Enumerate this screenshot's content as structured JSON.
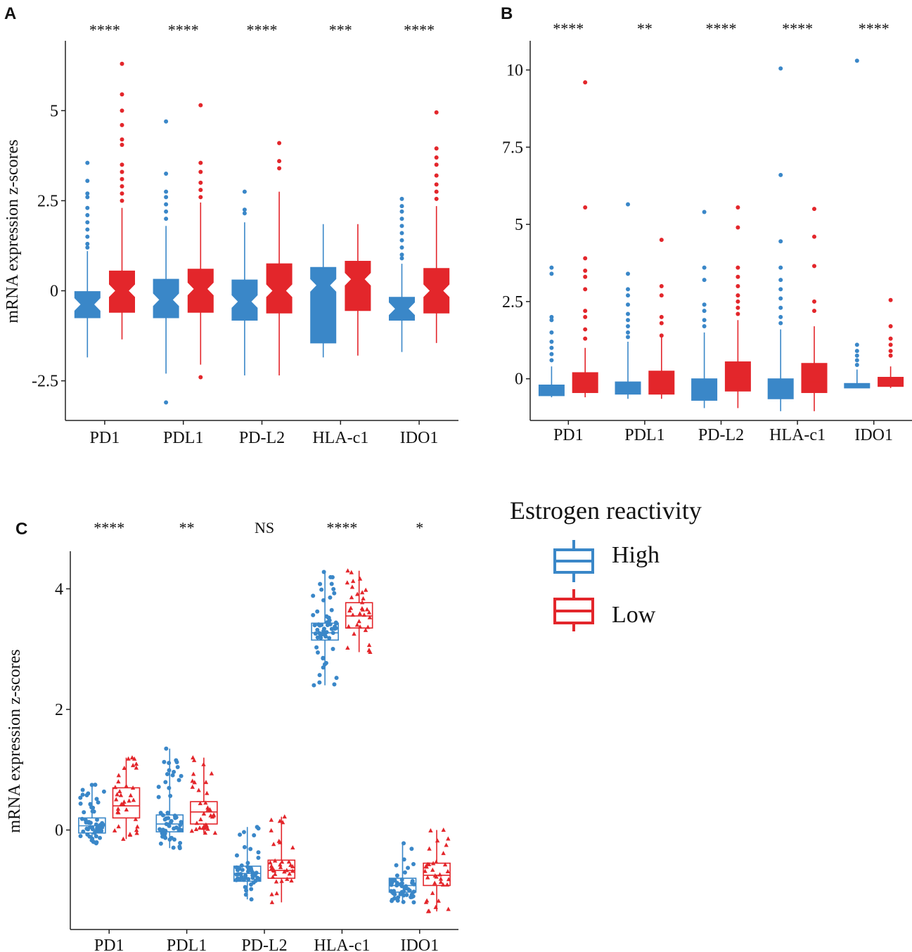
{
  "chart_data": [
    {
      "panel": "A",
      "type": "boxplot",
      "ylabel": "mRNA expression z-scores",
      "ylim": [
        -3.6,
        6.9
      ],
      "yticks": [
        -2.5,
        0,
        2.5,
        5
      ],
      "ytick_labels": [
        "-2.5",
        "0",
        "2.5",
        "5"
      ],
      "notched": true,
      "categories": [
        "PD1",
        "PDL1",
        "PD-L2",
        "HLA-c1",
        "IDO1"
      ],
      "significance": [
        "****",
        "****",
        "****",
        "***",
        "****"
      ],
      "series": [
        {
          "name": "High",
          "boxes": [
            {
              "q1": -0.75,
              "med": -0.38,
              "q3": -0.02,
              "lo": -1.85,
              "hi": 1.1,
              "out": [
                3.55,
                3.05,
                2.7,
                2.6,
                2.3,
                2.1,
                1.9,
                1.7,
                1.5,
                1.3,
                1.2
              ]
            },
            {
              "q1": -0.75,
              "med": -0.25,
              "q3": 0.32,
              "lo": -2.3,
              "hi": 1.8,
              "out": [
                4.7,
                3.25,
                2.75,
                2.6,
                2.4,
                2.2,
                2.0,
                -3.1
              ]
            },
            {
              "q1": -0.82,
              "med": -0.3,
              "q3": 0.3,
              "lo": -2.35,
              "hi": 1.9,
              "out": [
                2.75,
                2.25,
                2.15
              ]
            },
            {
              "q1": -1.45,
              "med": 0.15,
              "q3": 0.65,
              "lo": -1.85,
              "hi": 1.85,
              "out": []
            },
            {
              "q1": -0.82,
              "med": -0.5,
              "q3": -0.18,
              "lo": -1.7,
              "hi": 0.75,
              "out": [
                2.55,
                2.35,
                2.2,
                2.0,
                1.8,
                1.6,
                1.4,
                1.2,
                1.0,
                0.9
              ]
            }
          ]
        },
        {
          "name": "Low",
          "boxes": [
            {
              "q1": -0.6,
              "med": 0.0,
              "q3": 0.55,
              "lo": -1.35,
              "hi": 2.3,
              "out": [
                6.3,
                5.45,
                5.0,
                4.6,
                4.2,
                4.05,
                3.5,
                3.3,
                3.1,
                2.9,
                2.7,
                2.5
              ]
            },
            {
              "q1": -0.6,
              "med": 0.05,
              "q3": 0.6,
              "lo": -2.05,
              "hi": 2.45,
              "out": [
                5.15,
                3.55,
                3.3,
                3.0,
                2.8,
                2.6,
                -2.4
              ]
            },
            {
              "q1": -0.62,
              "med": 0.0,
              "q3": 0.75,
              "lo": -2.35,
              "hi": 2.75,
              "out": [
                4.1,
                3.6,
                3.4
              ]
            },
            {
              "q1": -0.55,
              "med": 0.32,
              "q3": 0.82,
              "lo": -1.8,
              "hi": 1.85,
              "out": []
            },
            {
              "q1": -0.62,
              "med": 0.0,
              "q3": 0.62,
              "lo": -1.45,
              "hi": 2.35,
              "out": [
                4.95,
                3.95,
                3.7,
                3.5,
                3.2,
                2.95,
                2.75,
                2.55
              ]
            }
          ]
        }
      ]
    },
    {
      "panel": "B",
      "type": "boxplot",
      "ylabel": "",
      "ylim": [
        -1.35,
        10.9
      ],
      "yticks": [
        0,
        2.5,
        5,
        7.5,
        10
      ],
      "ytick_labels": [
        "0",
        "2.5",
        "5",
        "7.5",
        "10"
      ],
      "notched": false,
      "categories": [
        "PD1",
        "PDL1",
        "PD-L2",
        "HLA-c1",
        "IDO1"
      ],
      "significance": [
        "****",
        "**",
        "****",
        "****",
        "****"
      ],
      "series": [
        {
          "name": "High",
          "boxes": [
            {
              "q1": -0.55,
              "med": -0.45,
              "q3": -0.2,
              "lo": -0.6,
              "hi": 0.4,
              "out": [
                3.6,
                3.4,
                2.0,
                1.9,
                1.5,
                1.2,
                1.0,
                0.8,
                0.6
              ]
            },
            {
              "q1": -0.5,
              "med": -0.4,
              "q3": -0.1,
              "lo": -0.65,
              "hi": 1.2,
              "out": [
                5.65,
                3.4,
                2.9,
                2.7,
                2.4,
                2.1,
                1.9,
                1.7,
                1.5,
                1.35
              ]
            },
            {
              "q1": -0.7,
              "med": -0.55,
              "q3": 0.0,
              "lo": -0.95,
              "hi": 1.5,
              "out": [
                5.4,
                3.6,
                3.2,
                2.4,
                2.2,
                1.9,
                1.7
              ]
            },
            {
              "q1": -0.65,
              "med": -0.5,
              "q3": 0.0,
              "lo": -1.05,
              "hi": 1.6,
              "out": [
                10.05,
                6.6,
                4.45,
                3.6,
                3.2,
                2.9,
                2.6,
                2.3,
                2.0,
                1.8
              ]
            },
            {
              "q1": -0.3,
              "med": -0.2,
              "q3": -0.15,
              "lo": -0.3,
              "hi": 0.3,
              "out": [
                10.3,
                1.1,
                0.9,
                0.75,
                0.6,
                0.45
              ]
            }
          ]
        },
        {
          "name": "Low",
          "boxes": [
            {
              "q1": -0.45,
              "med": -0.3,
              "q3": 0.2,
              "lo": -0.6,
              "hi": 1.0,
              "out": [
                9.6,
                5.55,
                3.9,
                3.5,
                3.3,
                2.9,
                2.2,
                2.0,
                1.6,
                1.3
              ]
            },
            {
              "q1": -0.5,
              "med": -0.35,
              "q3": 0.25,
              "lo": -0.65,
              "hi": 1.35,
              "out": [
                4.5,
                3.0,
                2.7,
                2.0,
                1.8,
                1.4
              ]
            },
            {
              "q1": -0.4,
              "med": 0.0,
              "q3": 0.55,
              "lo": -0.95,
              "hi": 1.9,
              "out": [
                5.55,
                4.9,
                3.6,
                3.3,
                3.0,
                2.7,
                2.5,
                2.3,
                2.1
              ]
            },
            {
              "q1": -0.45,
              "med": -0.1,
              "q3": 0.5,
              "lo": -1.05,
              "hi": 1.7,
              "out": [
                5.5,
                4.6,
                3.65,
                2.5,
                2.2
              ]
            },
            {
              "q1": -0.25,
              "med": -0.15,
              "q3": 0.05,
              "lo": -0.3,
              "hi": 0.4,
              "out": [
                2.55,
                1.7,
                1.3,
                1.1,
                0.9,
                0.75
              ]
            }
          ]
        }
      ]
    },
    {
      "panel": "C",
      "type": "boxplot",
      "ylabel": "mRNA expression z-scores",
      "ylim": [
        -1.65,
        4.6
      ],
      "yticks": [
        0,
        2,
        4
      ],
      "ytick_labels": [
        "0",
        "2",
        "4"
      ],
      "notched": false,
      "jitter": true,
      "categories": [
        "PD1",
        "PDL1",
        "PD-L2",
        "HLA-c1",
        "IDO1"
      ],
      "significance": [
        "****",
        "**",
        "NS",
        "****",
        "*"
      ],
      "series": [
        {
          "name": "High",
          "boxes": [
            {
              "q1": -0.05,
              "med": 0.07,
              "q3": 0.2,
              "lo": -0.22,
              "hi": 0.75,
              "n": 55
            },
            {
              "q1": -0.03,
              "med": 0.1,
              "q3": 0.25,
              "lo": -0.3,
              "hi": 1.35,
              "n": 55
            },
            {
              "q1": -0.85,
              "med": -0.72,
              "q3": -0.6,
              "lo": -1.15,
              "hi": 0.05,
              "n": 50
            },
            {
              "q1": 3.15,
              "med": 3.27,
              "q3": 3.43,
              "lo": 2.4,
              "hi": 4.28,
              "n": 60
            },
            {
              "q1": -1.03,
              "med": -0.92,
              "q3": -0.8,
              "lo": -1.2,
              "hi": -0.22,
              "n": 55
            }
          ]
        },
        {
          "name": "Low",
          "boxes": [
            {
              "q1": 0.2,
              "med": 0.4,
              "q3": 0.7,
              "lo": -0.15,
              "hi": 1.2,
              "n": 35
            },
            {
              "q1": 0.1,
              "med": 0.3,
              "q3": 0.47,
              "lo": -0.05,
              "hi": 1.2,
              "n": 35
            },
            {
              "q1": -0.8,
              "med": -0.67,
              "q3": -0.5,
              "lo": -1.2,
              "hi": 0.22,
              "n": 35
            },
            {
              "q1": 3.35,
              "med": 3.55,
              "q3": 3.77,
              "lo": 2.95,
              "hi": 4.3,
              "n": 35
            },
            {
              "q1": -0.92,
              "med": -0.75,
              "q3": -0.55,
              "lo": -1.35,
              "hi": 0.0,
              "n": 35
            }
          ]
        }
      ]
    }
  ],
  "legend": {
    "title": "Estrogen reactivity",
    "items": [
      {
        "label": "High",
        "color": "#3a87c8"
      },
      {
        "label": "Low",
        "color": "#e3262b"
      }
    ]
  },
  "colors": {
    "high": "#3a87c8",
    "low": "#e3262b",
    "axis": "#222222",
    "text": "#111111"
  }
}
